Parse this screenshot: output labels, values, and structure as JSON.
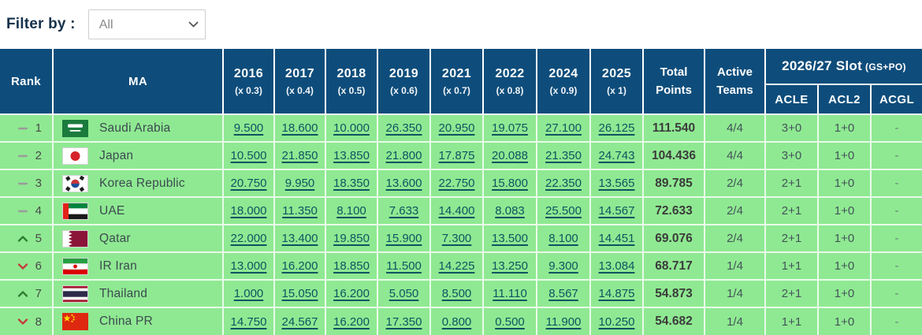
{
  "filter": {
    "label": "Filter by :",
    "value": "All"
  },
  "colors": {
    "header_navy": "#0E4D7B",
    "row_green": "#8FE992",
    "link_teal": "#0F5361",
    "trend_up_green": "#2E7D32",
    "trend_down_red": "#C43B3B"
  },
  "table": {
    "headers": {
      "rank": "Rank",
      "ma": "MA",
      "years": [
        {
          "year": "2016",
          "multiplier": "(x 0.3)"
        },
        {
          "year": "2017",
          "multiplier": "(x 0.4)"
        },
        {
          "year": "2018",
          "multiplier": "(x 0.5)"
        },
        {
          "year": "2019",
          "multiplier": "(x 0.6)"
        },
        {
          "year": "2021",
          "multiplier": "(x 0.7)"
        },
        {
          "year": "2022",
          "multiplier": "(x 0.8)"
        },
        {
          "year": "2024",
          "multiplier": "(x 0.9)"
        },
        {
          "year": "2025",
          "multiplier": "(x 1)"
        }
      ],
      "total": "Total Points",
      "active": "Active Teams",
      "slot_group": "2026/27 Slot",
      "slot_note": "(GS+PO)",
      "slot_cols": [
        "ACLE",
        "ACL2",
        "ACGL"
      ]
    },
    "rows": [
      {
        "trend": "same",
        "rank": "1",
        "flag": "saudi-arabia",
        "country": "Saudi Arabia",
        "scores": [
          "9.500",
          "18.600",
          "10.000",
          "26.350",
          "20.950",
          "19.075",
          "27.100",
          "26.125"
        ],
        "total": "111.540",
        "active": "4/4",
        "acle": "3+0",
        "acl2": "1+0",
        "acgl": "-"
      },
      {
        "trend": "same",
        "rank": "2",
        "flag": "japan",
        "country": "Japan",
        "scores": [
          "10.500",
          "21.850",
          "13.850",
          "21.800",
          "17.875",
          "20.088",
          "21.350",
          "24.743"
        ],
        "total": "104.436",
        "active": "4/4",
        "acle": "3+0",
        "acl2": "1+0",
        "acgl": "-"
      },
      {
        "trend": "same",
        "rank": "3",
        "flag": "korea-republic",
        "country": "Korea Republic",
        "scores": [
          "20.750",
          "9.950",
          "18.350",
          "13.600",
          "22.750",
          "15.800",
          "22.350",
          "13.565"
        ],
        "total": "89.785",
        "active": "2/4",
        "acle": "2+1",
        "acl2": "1+0",
        "acgl": "-"
      },
      {
        "trend": "same",
        "rank": "4",
        "flag": "uae",
        "country": "UAE",
        "scores": [
          "18.000",
          "11.350",
          "8.100",
          "7.633",
          "14.400",
          "8.083",
          "25.500",
          "14.567"
        ],
        "total": "72.633",
        "active": "2/4",
        "acle": "2+1",
        "acl2": "1+0",
        "acgl": "-"
      },
      {
        "trend": "up",
        "rank": "5",
        "flag": "qatar",
        "country": "Qatar",
        "scores": [
          "22.000",
          "13.400",
          "19.850",
          "15.900",
          "7.300",
          "13.500",
          "8.100",
          "14.451"
        ],
        "total": "69.076",
        "active": "2/4",
        "acle": "2+1",
        "acl2": "1+0",
        "acgl": "-"
      },
      {
        "trend": "down",
        "rank": "6",
        "flag": "ir-iran",
        "country": "IR Iran",
        "scores": [
          "13.000",
          "16.200",
          "18.850",
          "11.500",
          "14.225",
          "13.250",
          "9.300",
          "13.084"
        ],
        "total": "68.717",
        "active": "1/4",
        "acle": "1+1",
        "acl2": "1+0",
        "acgl": "-"
      },
      {
        "trend": "up",
        "rank": "7",
        "flag": "thailand",
        "country": "Thailand",
        "scores": [
          "1.000",
          "15.050",
          "16.200",
          "5.050",
          "8.500",
          "11.110",
          "8.567",
          "14.875"
        ],
        "total": "54.873",
        "active": "1/4",
        "acle": "2+1",
        "acl2": "1+0",
        "acgl": "-"
      },
      {
        "trend": "down",
        "rank": "8",
        "flag": "china-pr",
        "country": "China PR",
        "scores": [
          "14.750",
          "24.567",
          "16.200",
          "17.350",
          "0.800",
          "0.500",
          "11.900",
          "10.250"
        ],
        "total": "54.682",
        "active": "1/4",
        "acle": "1+1",
        "acl2": "1+0",
        "acgl": "-"
      }
    ]
  }
}
